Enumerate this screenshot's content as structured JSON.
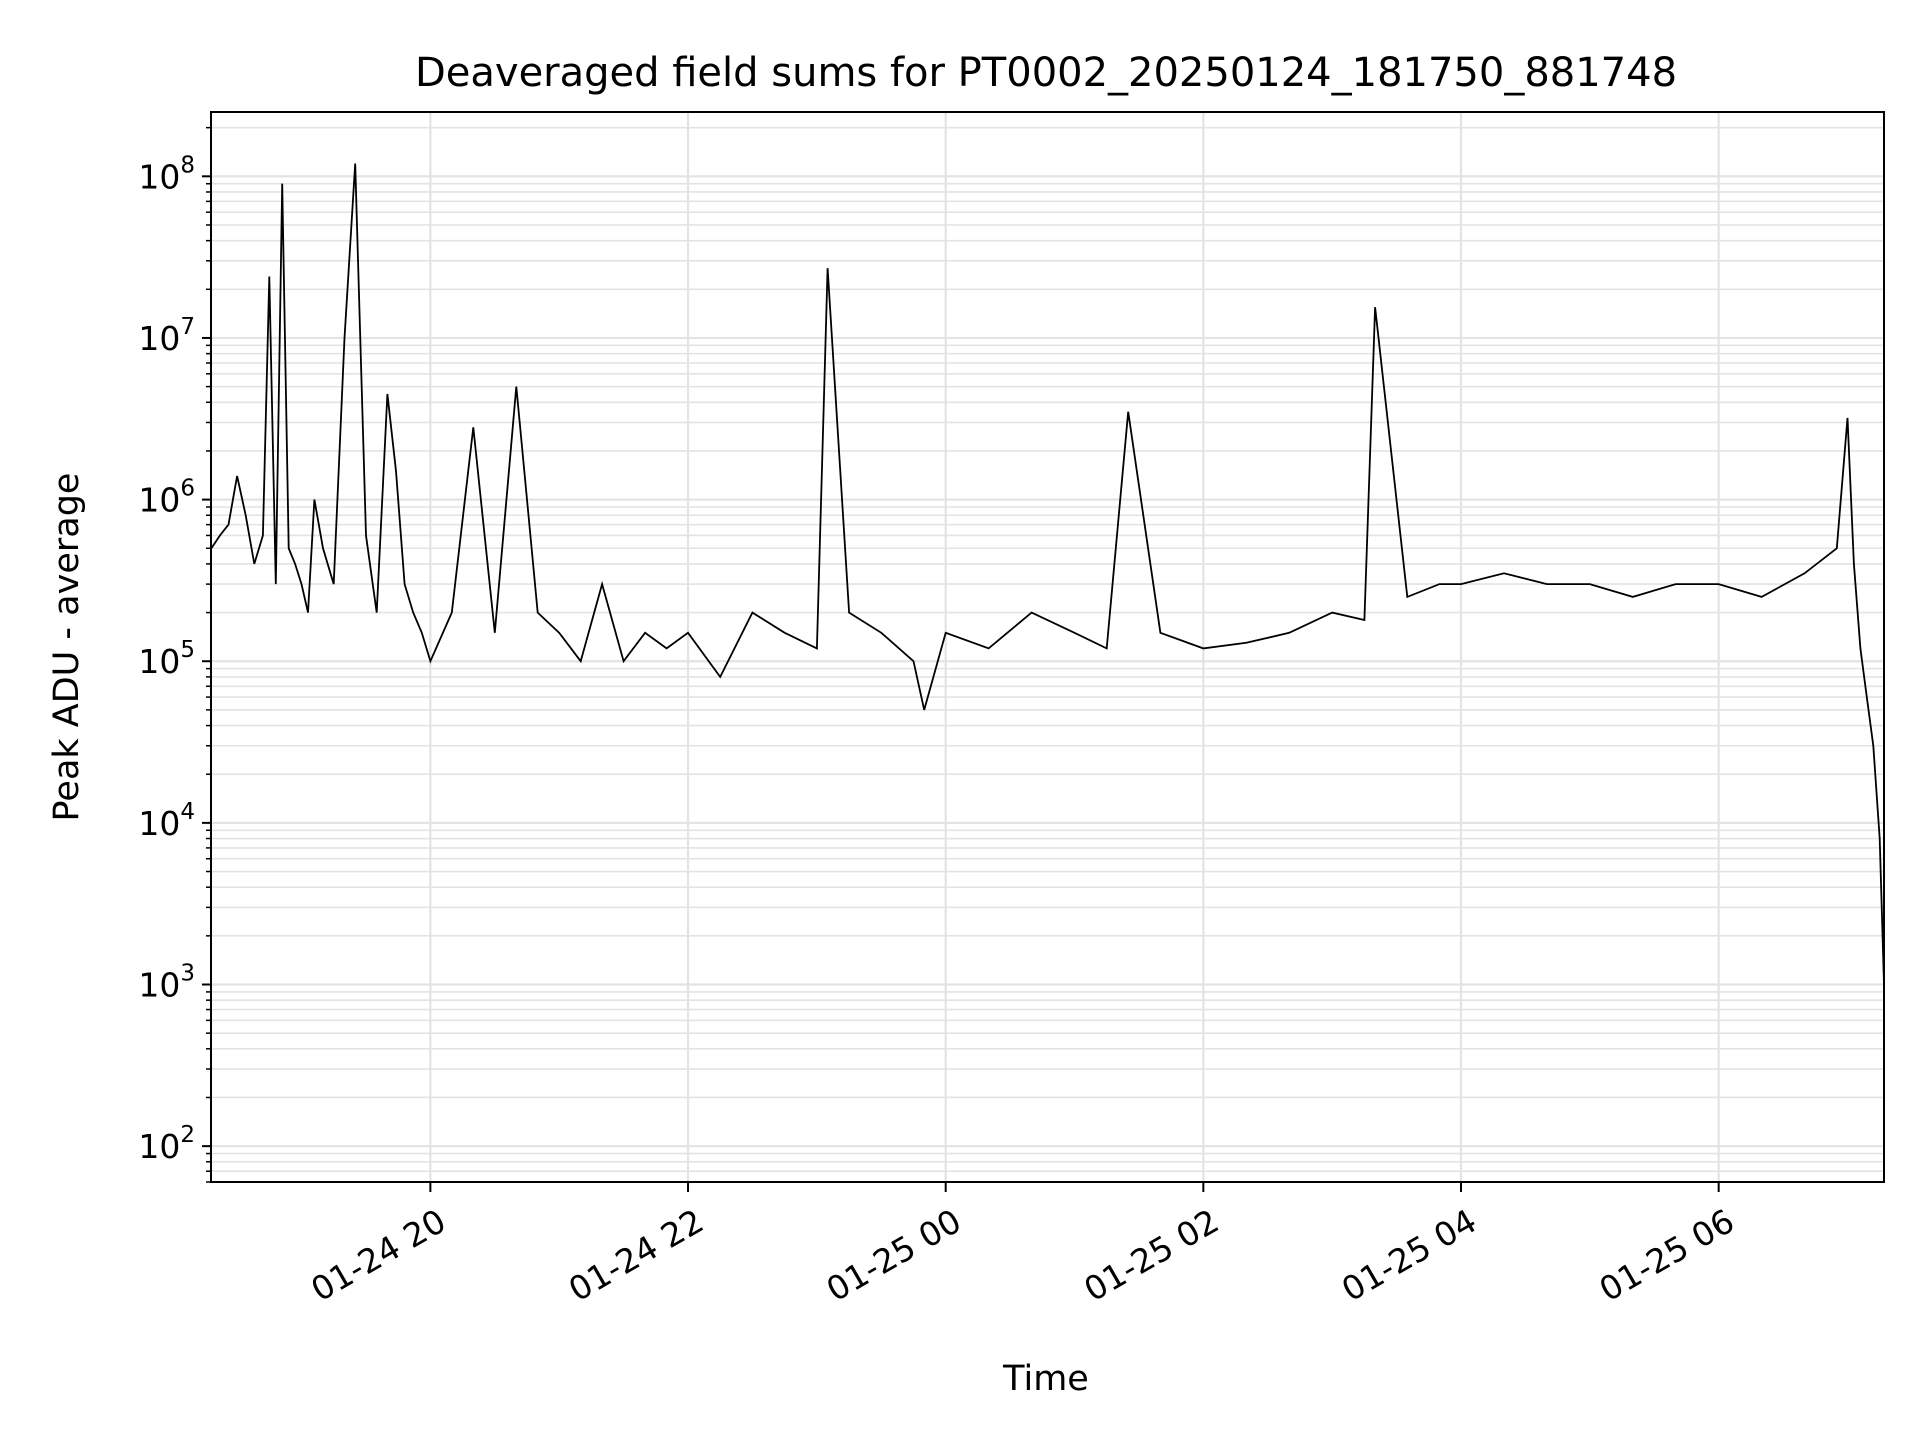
{
  "chart_data": {
    "type": "line",
    "title": "Deaveraged field sums for PT0002_20250124_181750_881748",
    "xlabel": "Time",
    "ylabel": "Peak ADU - average",
    "yscale": "log",
    "ylim": [
      60,
      250000000
    ],
    "xlim": [
      "2025-01-24T18:17:50",
      "2025-01-25T07:17:00"
    ],
    "x_ticks": [
      {
        "value": "2025-01-24T20:00",
        "label": "01-24 20"
      },
      {
        "value": "2025-01-24T22:00",
        "label": "01-24 22"
      },
      {
        "value": "2025-01-25T00:00",
        "label": "01-25 00"
      },
      {
        "value": "2025-01-25T02:00",
        "label": "01-25 02"
      },
      {
        "value": "2025-01-25T04:00",
        "label": "01-25 04"
      },
      {
        "value": "2025-01-25T06:00",
        "label": "01-25 06"
      }
    ],
    "y_ticks": [
      {
        "value": 100,
        "base": "10",
        "exp": "2"
      },
      {
        "value": 1000,
        "base": "10",
        "exp": "3"
      },
      {
        "value": 10000,
        "base": "10",
        "exp": "4"
      },
      {
        "value": 100000,
        "base": "10",
        "exp": "5"
      },
      {
        "value": 1000000,
        "base": "10",
        "exp": "6"
      },
      {
        "value": 10000000,
        "base": "10",
        "exp": "7"
      },
      {
        "value": 100000000,
        "base": "10",
        "exp": "8"
      }
    ],
    "grid": true,
    "line_color": "#000000",
    "series": [
      {
        "x": [
          "2025-01-24T18:18",
          "2025-01-24T18:22",
          "2025-01-24T18:26",
          "2025-01-24T18:30",
          "2025-01-24T18:34",
          "2025-01-24T18:38",
          "2025-01-24T18:42",
          "2025-01-24T18:45",
          "2025-01-24T18:48",
          "2025-01-24T18:51",
          "2025-01-24T18:54",
          "2025-01-24T18:57",
          "2025-01-24T19:00",
          "2025-01-24T19:03",
          "2025-01-24T19:06",
          "2025-01-24T19:10",
          "2025-01-24T19:15",
          "2025-01-24T19:20",
          "2025-01-24T19:25",
          "2025-01-24T19:30",
          "2025-01-24T19:35",
          "2025-01-24T19:40",
          "2025-01-24T19:44",
          "2025-01-24T19:48",
          "2025-01-24T19:52",
          "2025-01-24T19:56",
          "2025-01-24T20:00",
          "2025-01-24T20:10",
          "2025-01-24T20:20",
          "2025-01-24T20:30",
          "2025-01-24T20:40",
          "2025-01-24T20:50",
          "2025-01-24T21:00",
          "2025-01-24T21:10",
          "2025-01-24T21:20",
          "2025-01-24T21:30",
          "2025-01-24T21:40",
          "2025-01-24T21:50",
          "2025-01-24T22:00",
          "2025-01-24T22:15",
          "2025-01-24T22:30",
          "2025-01-24T22:45",
          "2025-01-24T23:00",
          "2025-01-24T23:05",
          "2025-01-24T23:15",
          "2025-01-24T23:30",
          "2025-01-24T23:45",
          "2025-01-24T23:50",
          "2025-01-25T00:00",
          "2025-01-25T00:20",
          "2025-01-25T00:40",
          "2025-01-25T01:00",
          "2025-01-25T01:15",
          "2025-01-25T01:25",
          "2025-01-25T01:40",
          "2025-01-25T02:00",
          "2025-01-25T02:20",
          "2025-01-25T02:40",
          "2025-01-25T03:00",
          "2025-01-25T03:15",
          "2025-01-25T03:20",
          "2025-01-25T03:35",
          "2025-01-25T03:50",
          "2025-01-25T04:00",
          "2025-01-25T04:20",
          "2025-01-25T04:40",
          "2025-01-25T05:00",
          "2025-01-25T05:20",
          "2025-01-25T05:40",
          "2025-01-25T06:00",
          "2025-01-25T06:20",
          "2025-01-25T06:40",
          "2025-01-25T06:55",
          "2025-01-25T07:00",
          "2025-01-25T07:03",
          "2025-01-25T07:06",
          "2025-01-25T07:09",
          "2025-01-25T07:12",
          "2025-01-25T07:15",
          "2025-01-25T07:17"
        ],
        "y": [
          500000,
          600000,
          700000,
          1400000,
          800000,
          400000,
          600000,
          24000000,
          300000,
          90000000,
          500000,
          400000,
          300000,
          200000,
          1000000,
          500000,
          300000,
          10000000,
          120000000,
          600000,
          200000,
          4500000,
          1500000,
          300000,
          200000,
          150000,
          100000,
          200000,
          2800000,
          150000,
          5000000,
          200000,
          150000,
          100000,
          300000,
          100000,
          150000,
          120000,
          150000,
          80000,
          200000,
          150000,
          120000,
          27000000,
          200000,
          150000,
          100000,
          50000,
          150000,
          120000,
          200000,
          150000,
          120000,
          3500000,
          150000,
          120000,
          130000,
          150000,
          200000,
          180000,
          15500000,
          250000,
          300000,
          300000,
          350000,
          300000,
          300000,
          250000,
          300000,
          300000,
          250000,
          350000,
          500000,
          3200000,
          400000,
          120000,
          60000,
          30000,
          8000,
          1000
        ]
      }
    ],
    "annotations": []
  }
}
